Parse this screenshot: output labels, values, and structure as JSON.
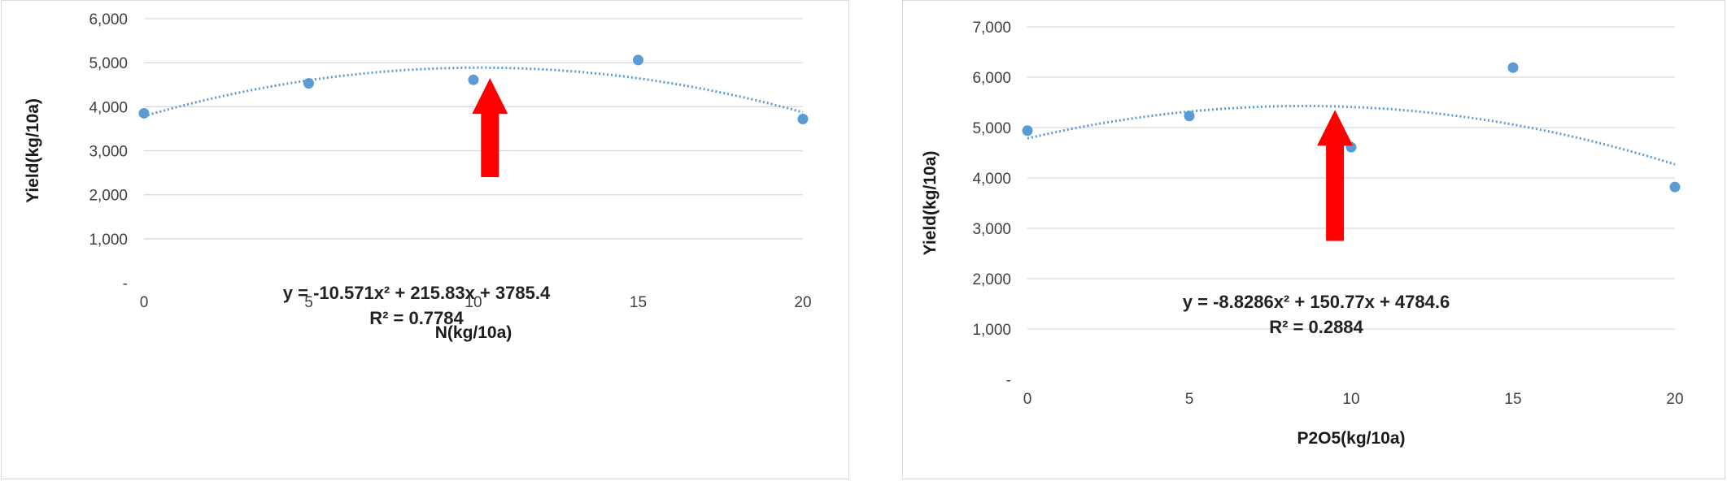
{
  "colors": {
    "marker": "#5b9bd5",
    "trendline": "#5b9bd5",
    "gridline": "#d9d9d9",
    "arrow": "#ff0000"
  },
  "chart_data": [
    {
      "type": "scatter",
      "xlabel": "N(kg/10a)",
      "ylabel": "Yield(kg/10a)",
      "xlim": [
        0,
        20
      ],
      "ylim": [
        0,
        6000
      ],
      "x_ticks": [
        0,
        5,
        10,
        15,
        20
      ],
      "x_tick_labels": [
        "0",
        "5",
        "10",
        "15",
        "20"
      ],
      "y_ticks": [
        0,
        1000,
        2000,
        3000,
        4000,
        5000,
        6000
      ],
      "y_tick_labels": [
        "-",
        "1,000",
        "2,000",
        "3,000",
        "4,000",
        "5,000",
        "6,000"
      ],
      "grid": "horizontal",
      "legend": "none",
      "points": [
        {
          "x": 0,
          "y": 3850
        },
        {
          "x": 5,
          "y": 4530
        },
        {
          "x": 10,
          "y": 4610
        },
        {
          "x": 15,
          "y": 5060
        },
        {
          "x": 20,
          "y": 3720
        }
      ],
      "trendline": {
        "type": "polynomial-2",
        "a": -10.571,
        "b": 215.83,
        "c": 3785.4,
        "style": "dotted"
      },
      "equation_label": "y = -10.571x² + 215.83x + 3785.4",
      "r2_label": "R² = 0.7784",
      "arrow": {
        "x": 10.5,
        "y_from": 2400,
        "y_to": 4650,
        "direction": "up"
      }
    },
    {
      "type": "scatter",
      "xlabel": "P2O5(kg/10a)",
      "ylabel": "Yield(kg/10a)",
      "xlim": [
        0,
        20
      ],
      "ylim": [
        0,
        7000
      ],
      "x_ticks": [
        0,
        5,
        10,
        15,
        20
      ],
      "x_tick_labels": [
        "0",
        "5",
        "10",
        "15",
        "20"
      ],
      "y_ticks": [
        0,
        1000,
        2000,
        3000,
        4000,
        5000,
        6000,
        7000
      ],
      "y_tick_labels": [
        "-",
        "1,000",
        "2,000",
        "3,000",
        "4,000",
        "5,000",
        "6,000",
        "7,000"
      ],
      "grid": "horizontal",
      "legend": "none",
      "points": [
        {
          "x": 0,
          "y": 4940
        },
        {
          "x": 5,
          "y": 5230
        },
        {
          "x": 10,
          "y": 4610
        },
        {
          "x": 15,
          "y": 6190
        },
        {
          "x": 20,
          "y": 3820
        }
      ],
      "trendline": {
        "type": "polynomial-2",
        "a": -8.8286,
        "b": 150.77,
        "c": 4784.6,
        "style": "dotted"
      },
      "equation_label": "y = -8.8286x² + 150.77x + 4784.6",
      "r2_label": "R² = 0.2884",
      "arrow": {
        "x": 9.5,
        "y_from": 2750,
        "y_to": 5350,
        "direction": "up"
      }
    }
  ]
}
